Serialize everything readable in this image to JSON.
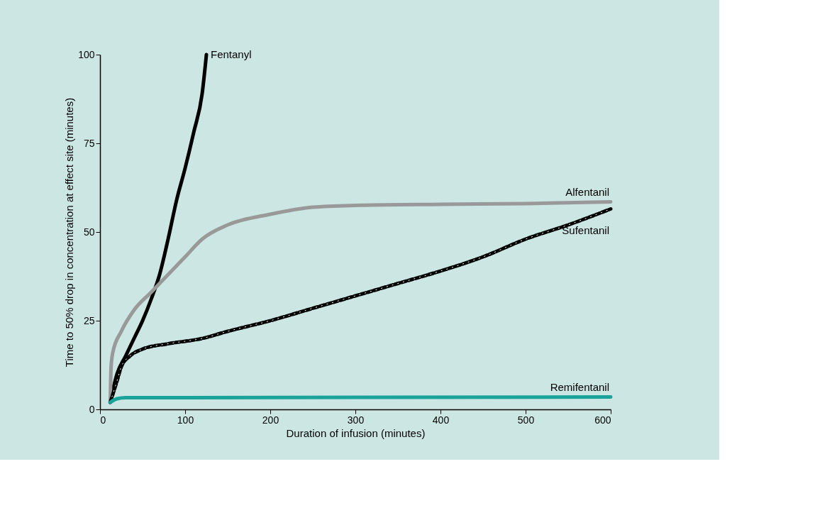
{
  "chart_data": {
    "type": "line",
    "xlabel": "Duration of infusion (minutes)",
    "ylabel": "Time to 50% drop in concentration at effect site (minutes)",
    "xlim": [
      0,
      600
    ],
    "ylim": [
      0,
      100
    ],
    "xticks": [
      0,
      100,
      200,
      300,
      400,
      500,
      600
    ],
    "yticks": [
      0,
      25,
      50,
      75,
      100
    ],
    "grid": false,
    "legend": false,
    "marker": "none",
    "series": [
      {
        "name": "Fentanyl",
        "color": "#000000",
        "line_style": "solid",
        "x": [
          12,
          20,
          30,
          40,
          50,
          60,
          70,
          80,
          90,
          100,
          110,
          120,
          125
        ],
        "values": [
          2,
          10,
          15,
          20,
          25,
          31,
          38,
          48,
          59,
          68,
          78,
          89,
          100
        ]
      },
      {
        "name": "Alfentanil",
        "color": "#999999",
        "line_style": "solid",
        "x": [
          12,
          13,
          15,
          25,
          40,
          60,
          80,
          100,
          120,
          150,
          200,
          250,
          300,
          400,
          500,
          600
        ],
        "values": [
          2,
          12,
          16,
          22,
          28,
          33,
          38,
          43,
          48,
          52,
          55,
          57,
          57.5,
          57.8,
          58,
          58.5
        ]
      },
      {
        "name": "Sufentanil",
        "color": "#000000",
        "line_style": "dashed",
        "x": [
          12,
          20,
          25,
          35,
          50,
          80,
          120,
          150,
          200,
          250,
          300,
          350,
          400,
          450,
          500,
          550,
          600
        ],
        "values": [
          2,
          8,
          12,
          15,
          17,
          18.5,
          20,
          22,
          25,
          28.5,
          32,
          35.5,
          39,
          43,
          48,
          52,
          56.5
        ]
      },
      {
        "name": "Remifentanil",
        "color": "#1aa39a",
        "line_style": "solid",
        "x": [
          12,
          20,
          30,
          100,
          600
        ],
        "values": [
          2,
          3,
          3.3,
          3.3,
          3.5
        ]
      }
    ]
  }
}
